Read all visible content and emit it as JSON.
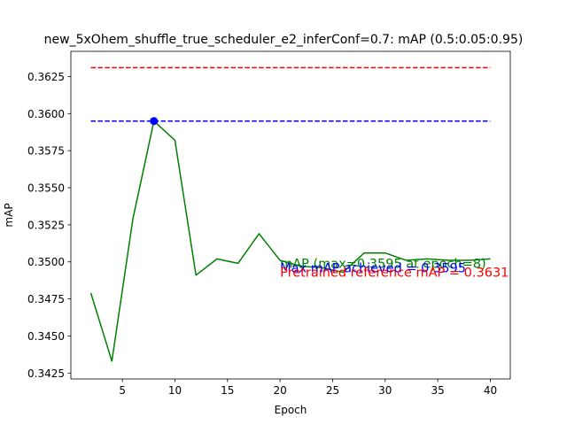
{
  "chart_data": {
    "type": "line",
    "title": "new_5xOhem_shuffle_true_scheduler_e2_inferConf=0.7:  mAP (0.5:0.05:0.95)",
    "xlabel": "Epoch",
    "ylabel": "mAP",
    "xlim": [
      0.1,
      41.9
    ],
    "ylim": [
      0.3421,
      0.3642
    ],
    "xticks": [
      5,
      10,
      15,
      20,
      25,
      30,
      35,
      40
    ],
    "xtick_labels": [
      "5",
      "10",
      "15",
      "20",
      "25",
      "30",
      "35",
      "40"
    ],
    "yticks": [
      0.3425,
      0.345,
      0.3475,
      0.35,
      0.3525,
      0.355,
      0.3575,
      0.36,
      0.3625
    ],
    "ytick_labels": [
      "0.3425",
      "0.3450",
      "0.3475",
      "0.3500",
      "0.3525",
      "0.3550",
      "0.3575",
      "0.3600",
      "0.3625"
    ],
    "grid": false,
    "series": [
      {
        "color": "#008000",
        "x": [
          2,
          4,
          6,
          8,
          10,
          12,
          14,
          16,
          18,
          20,
          22,
          24,
          26,
          28,
          30,
          32,
          34,
          36,
          38,
          40
        ],
        "y": [
          0.3479,
          0.3433,
          0.3529,
          0.3595,
          0.3582,
          0.3491,
          0.3502,
          0.3499,
          0.3519,
          0.3501,
          0.3497,
          0.3496,
          0.3493,
          0.3506,
          0.3506,
          0.3501,
          0.3502,
          0.3501,
          0.3501,
          0.3502
        ]
      }
    ],
    "reference_lines": [
      {
        "y": 0.3631,
        "x": [
          2,
          40
        ],
        "color": "#ff0000",
        "style": "dashed"
      },
      {
        "y": 0.3595,
        "x": [
          2,
          40
        ],
        "color": "#0000ff",
        "style": "dashed"
      }
    ],
    "max_point": {
      "x": 8,
      "y": 0.3595,
      "color": "#0000ff"
    },
    "annotations": [
      {
        "text": "mAP (max=0.3595 at epoch=8)",
        "x": 20,
        "y": 0.3499,
        "color": "#008000"
      },
      {
        "text": "Max mAP achieved = 0.3595",
        "x": 20,
        "y": 0.3496,
        "color": "#0000ff"
      },
      {
        "text": "Pretrained reference mAP = 0.3631",
        "x": 20,
        "y": 0.3493,
        "color": "#ff0000"
      }
    ]
  }
}
